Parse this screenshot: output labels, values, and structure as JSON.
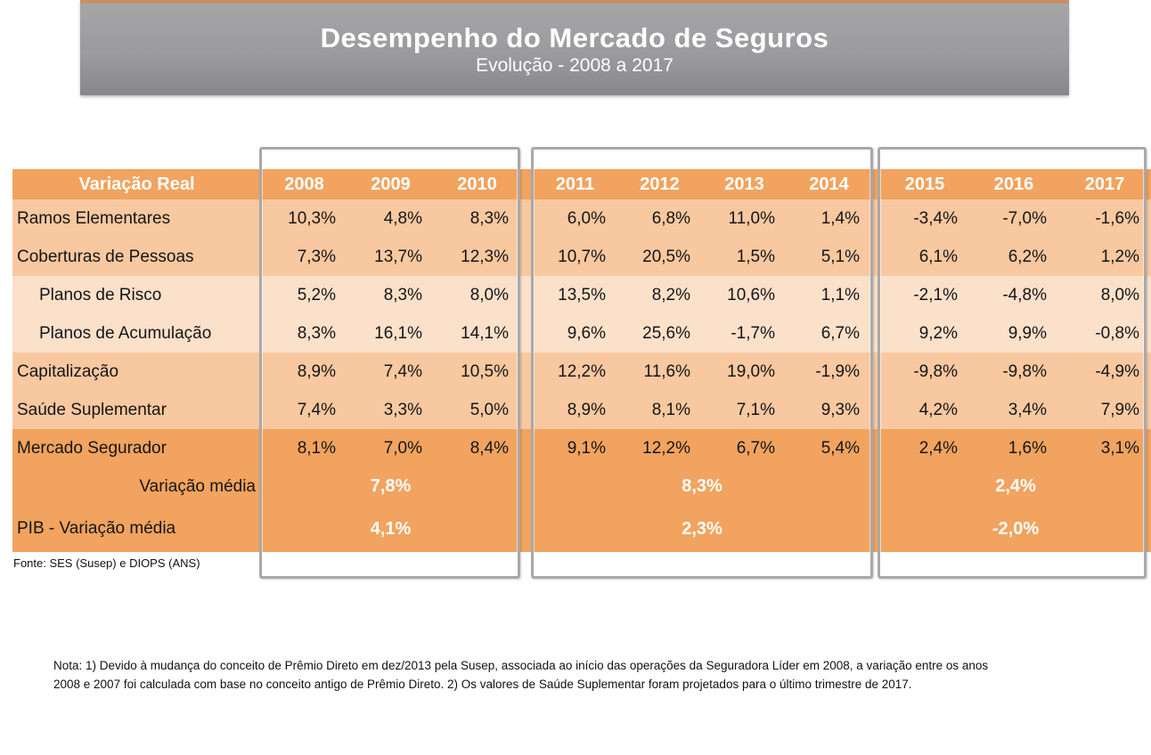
{
  "banner": {
    "title": "Desempenho do Mercado de Seguros",
    "subtitle": "Evolução - 2008 a 2017"
  },
  "table": {
    "header": {
      "label": "Variação Real",
      "years": [
        "2008",
        "2009",
        "2010",
        "2011",
        "2012",
        "2013",
        "2014",
        "2015",
        "2016",
        "2017"
      ]
    },
    "rows": [
      {
        "label": "Ramos Elementares",
        "values": [
          "10,3%",
          "4,8%",
          "8,3%",
          "6,0%",
          "6,8%",
          "11,0%",
          "1,4%",
          "-3,4%",
          "-7,0%",
          "-1,6%"
        ],
        "circled": [
          0,
          5
        ]
      },
      {
        "label": "Coberturas de Pessoas",
        "values": [
          "7,3%",
          "13,7%",
          "12,3%",
          "10,7%",
          "20,5%",
          "1,5%",
          "5,1%",
          "6,1%",
          "6,2%",
          "1,2%"
        ],
        "circled": []
      },
      {
        "label": "Planos de Risco",
        "values": [
          "5,2%",
          "8,3%",
          "8,0%",
          "13,5%",
          "8,2%",
          "10,6%",
          "1,1%",
          "-2,1%",
          "-4,8%",
          "8,0%"
        ],
        "circled": [
          3,
          5,
          9
        ]
      },
      {
        "label": "Planos de Acumulação",
        "values": [
          "8,3%",
          "16,1%",
          "14,1%",
          "9,6%",
          "25,6%",
          "-1,7%",
          "6,7%",
          "9,2%",
          "9,9%",
          "-0,8%"
        ],
        "circled": [
          1,
          2,
          4,
          6,
          7,
          8
        ]
      },
      {
        "label": "Capitalização",
        "values": [
          "8,9%",
          "7,4%",
          "10,5%",
          "12,2%",
          "11,6%",
          "19,0%",
          "-1,9%",
          "-9,8%",
          "-9,8%",
          "-4,9%"
        ],
        "circled": []
      },
      {
        "label": "Saúde Suplementar",
        "values": [
          "7,4%",
          "3,3%",
          "5,0%",
          "8,9%",
          "8,1%",
          "7,1%",
          "9,3%",
          "4,2%",
          "3,4%",
          "7,9%"
        ],
        "circled": [
          6
        ]
      },
      {
        "label": "Mercado Segurador",
        "values": [
          "8,1%",
          "7,0%",
          "8,4%",
          "9,1%",
          "12,2%",
          "6,7%",
          "5,4%",
          "2,4%",
          "1,6%",
          "3,1%"
        ],
        "circled": []
      }
    ],
    "summary_rows": [
      {
        "label": "Variação média",
        "values": [
          "7,8%",
          "8,3%",
          "2,4%"
        ]
      },
      {
        "label": "PIB - Variação média",
        "values": [
          "4,1%",
          "2,3%",
          "-2,0%"
        ]
      }
    ],
    "group_ranges": [
      "2008-2010",
      "2011-2014",
      "2015-2017"
    ]
  },
  "source": "Fonte: SES (Susep) e DIOPS (ANS)",
  "note": "Nota: 1) Devido à mudança do conceito de Prêmio Direto em dez/2013 pela Susep, associada ao início das operações da Seguradora Líder em 2008, a variação entre os anos 2008 e 2007 foi calculada com base no conceito antigo de Prêmio Direto. 2) Os valores de Saúde Suplementar foram projetados para o último trimestre de 2017.",
  "colors": {
    "header_orange": "#f1a35f",
    "row_medium": "#f8c8a0",
    "row_light": "#fbe0ca",
    "annotation_red": "#e53124",
    "banner_gray_top": "#a6a6a8",
    "banner_gray_bottom": "#88888a",
    "banner_accent": "#c98e63",
    "group_box_border": "#a9a9a9"
  }
}
